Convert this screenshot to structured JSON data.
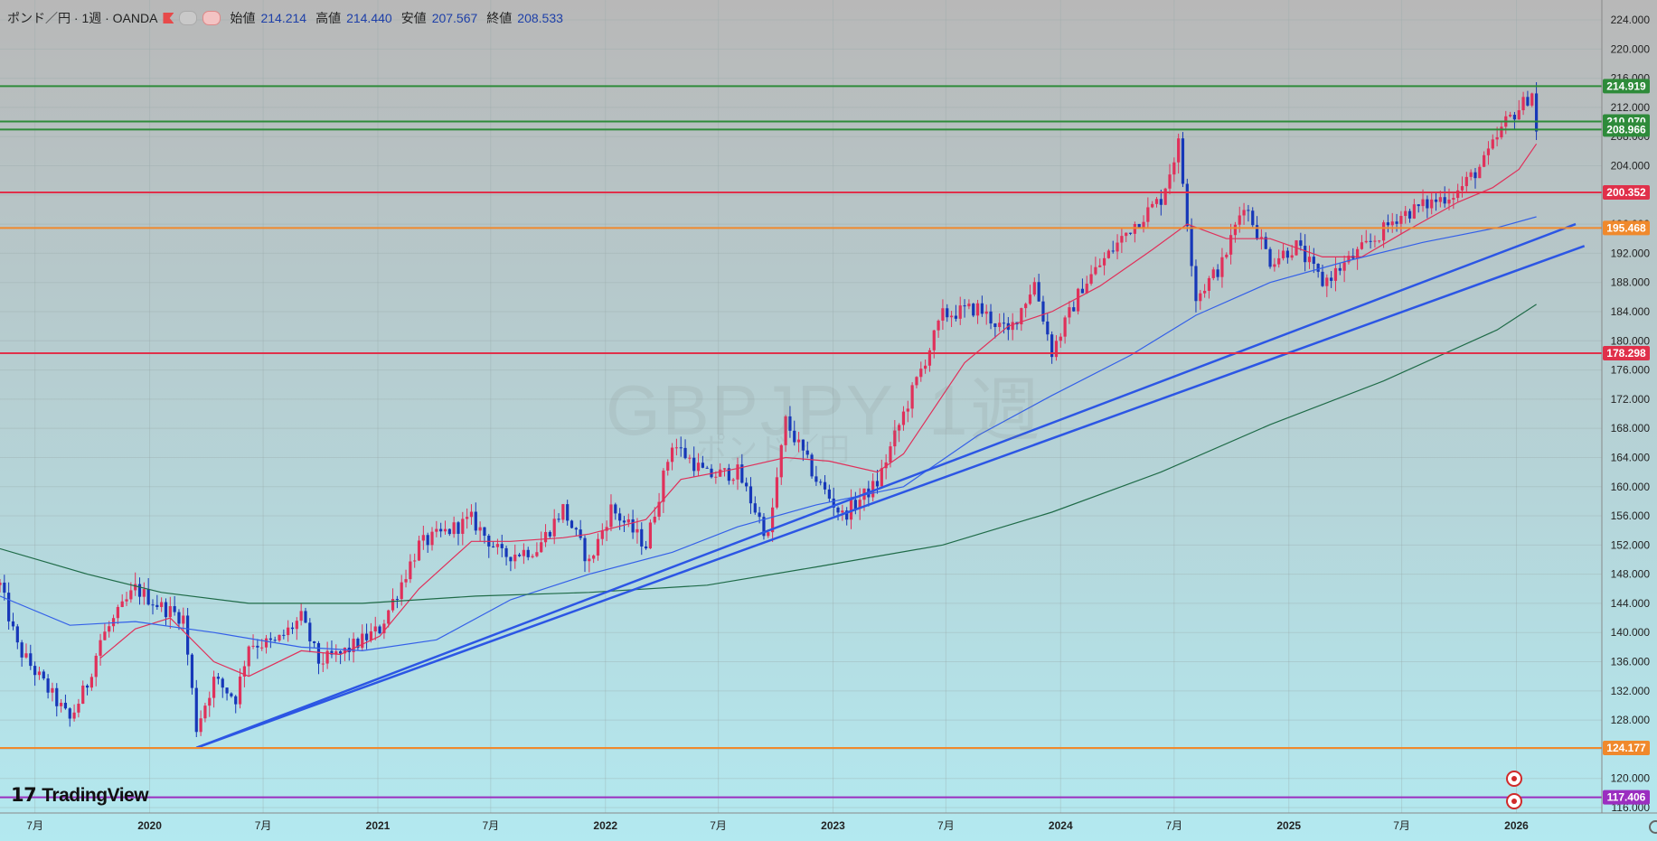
{
  "header": {
    "symbol": "ポンド／円 · 1週 · OANDA",
    "open_label": "始値",
    "open_value": "214.214",
    "high_label": "高値",
    "high_value": "214.440",
    "low_label": "安値",
    "low_value": "207.567",
    "close_label": "終値",
    "close_value": "208.533"
  },
  "watermark": {
    "main": "GBPJPY, 1週",
    "sub": "ポンド／円"
  },
  "logo": {
    "text": "TradingView"
  },
  "colors": {
    "bg_top": "#b6b6b6",
    "bg_bottom": "#b3e9f0",
    "bull": "#e0305a",
    "bear": "#1637b8",
    "ma_short": "#e0305a",
    "ma_mid": "#3460e8",
    "ma_long": "#1f6b48",
    "trend": "#2c56e4"
  },
  "chart_data": {
    "type": "candlestick",
    "interval": "weekly",
    "y_axis": {
      "range": [
        116.0,
        224.5
      ],
      "ticks": [
        "224.000",
        "220.000",
        "216.000",
        "212.000",
        "208.000",
        "204.000",
        "200.000",
        "196.000",
        "192.000",
        "188.000",
        "184.000",
        "180.000",
        "176.000",
        "172.000",
        "168.000",
        "164.000",
        "160.000",
        "156.000",
        "152.000",
        "148.000",
        "144.000",
        "140.000",
        "136.000",
        "132.000",
        "128.000",
        "124.000",
        "120.000",
        "116.000"
      ],
      "position": "right"
    },
    "x_axis": {
      "range": [
        "2019-05-06",
        "2026-05-18"
      ],
      "ticks": [
        {
          "date": "2019-07-01",
          "label": "7月"
        },
        {
          "date": "2020-01-01",
          "label": "2020"
        },
        {
          "date": "2020-07-01",
          "label": "7月"
        },
        {
          "date": "2021-01-01",
          "label": "2021"
        },
        {
          "date": "2021-07-01",
          "label": "7月"
        },
        {
          "date": "2022-01-01",
          "label": "2022"
        },
        {
          "date": "2022-07-01",
          "label": "7月"
        },
        {
          "date": "2023-01-01",
          "label": "2023"
        },
        {
          "date": "2023-07-01",
          "label": "7月"
        },
        {
          "date": "2024-01-01",
          "label": "2024"
        },
        {
          "date": "2024-07-01",
          "label": "7月"
        },
        {
          "date": "2025-01-01",
          "label": "2025"
        },
        {
          "date": "2025-07-01",
          "label": "7月"
        },
        {
          "date": "2026-01-01",
          "label": "2026"
        }
      ]
    },
    "price_path": [
      [
        "2019-05-06",
        146.5
      ],
      [
        "2019-06-03",
        138.0
      ],
      [
        "2019-08-26",
        128.0
      ],
      [
        "2019-09-23",
        133.0
      ],
      [
        "2019-10-14",
        139.0
      ],
      [
        "2019-12-09",
        146.0
      ],
      [
        "2020-01-20",
        143.5
      ],
      [
        "2020-02-24",
        142.0
      ],
      [
        "2020-03-16",
        127.0
      ],
      [
        "2020-04-13",
        133.5
      ],
      [
        "2020-05-18",
        131.0
      ],
      [
        "2020-06-08",
        138.5
      ],
      [
        "2020-07-20",
        138.5
      ],
      [
        "2020-08-31",
        142.0
      ],
      [
        "2020-09-28",
        136.0
      ],
      [
        "2020-11-02",
        137.0
      ],
      [
        "2021-01-04",
        140.5
      ],
      [
        "2021-03-08",
        152.0
      ],
      [
        "2021-05-31",
        155.5
      ],
      [
        "2021-07-19",
        150.5
      ],
      [
        "2021-09-13",
        151.5
      ],
      [
        "2021-10-25",
        157.0
      ],
      [
        "2021-12-06",
        149.5
      ],
      [
        "2022-01-10",
        157.0
      ],
      [
        "2022-03-07",
        152.0
      ],
      [
        "2022-04-18",
        166.0
      ],
      [
        "2022-06-13",
        161.5
      ],
      [
        "2022-08-01",
        162.0
      ],
      [
        "2022-09-19",
        153.0
      ],
      [
        "2022-10-17",
        169.0
      ],
      [
        "2022-12-05",
        161.0
      ],
      [
        "2023-01-16",
        156.0
      ],
      [
        "2023-03-13",
        160.5
      ],
      [
        "2023-04-24",
        170.0
      ],
      [
        "2023-06-26",
        183.5
      ],
      [
        "2023-08-21",
        184.5
      ],
      [
        "2023-10-09",
        181.0
      ],
      [
        "2023-11-20",
        188.0
      ],
      [
        "2023-12-18",
        178.5
      ],
      [
        "2024-02-05",
        187.5
      ],
      [
        "2024-04-22",
        195.5
      ],
      [
        "2024-06-10",
        199.5
      ],
      [
        "2024-07-08",
        207.0
      ],
      [
        "2024-08-05",
        186.0
      ],
      [
        "2024-09-16",
        190.5
      ],
      [
        "2024-10-21",
        199.0
      ],
      [
        "2024-12-02",
        191.0
      ],
      [
        "2025-01-13",
        193.0
      ],
      [
        "2025-02-24",
        188.0
      ],
      [
        "2025-04-07",
        191.0
      ],
      [
        "2025-05-19",
        194.0
      ],
      [
        "2025-06-23",
        197.0
      ],
      [
        "2025-08-04",
        198.5
      ],
      [
        "2025-09-29",
        200.5
      ],
      [
        "2025-11-10",
        204.5
      ],
      [
        "2025-12-15",
        210.0
      ],
      [
        "2026-01-12",
        212.5
      ],
      [
        "2026-01-26",
        214.2
      ],
      [
        "2026-02-02",
        208.5
      ]
    ],
    "moving_averages": [
      {
        "color": "#e0305a",
        "path": [
          [
            "2019-10-14",
            136.5
          ],
          [
            "2019-12-09",
            140.5
          ],
          [
            "2020-02-03",
            142.0
          ],
          [
            "2020-04-13",
            136.0
          ],
          [
            "2020-06-08",
            134.0
          ],
          [
            "2020-08-31",
            137.5
          ],
          [
            "2020-11-02",
            137.0
          ],
          [
            "2021-01-04",
            139.5
          ],
          [
            "2021-03-08",
            146.0
          ],
          [
            "2021-05-31",
            152.5
          ],
          [
            "2021-08-02",
            152.5
          ],
          [
            "2021-10-25",
            153.0
          ],
          [
            "2021-12-06",
            153.5
          ],
          [
            "2022-03-07",
            155.5
          ],
          [
            "2022-05-02",
            161.0
          ],
          [
            "2022-08-01",
            162.5
          ],
          [
            "2022-10-17",
            164.0
          ],
          [
            "2022-12-26",
            163.5
          ],
          [
            "2023-03-13",
            162.0
          ],
          [
            "2023-04-24",
            164.5
          ],
          [
            "2023-07-31",
            177.0
          ],
          [
            "2023-10-09",
            182.0
          ],
          [
            "2023-12-18",
            184.0
          ],
          [
            "2024-03-04",
            187.5
          ],
          [
            "2024-05-27",
            192.5
          ],
          [
            "2024-07-22",
            196.0
          ],
          [
            "2024-09-23",
            194.0
          ],
          [
            "2024-12-02",
            194.0
          ],
          [
            "2025-02-24",
            191.5
          ],
          [
            "2025-04-28",
            191.5
          ],
          [
            "2025-07-07",
            195.0
          ],
          [
            "2025-09-29",
            199.0
          ],
          [
            "2025-11-24",
            201.0
          ],
          [
            "2026-01-05",
            203.5
          ],
          [
            "2026-02-02",
            207.0
          ]
        ]
      },
      {
        "color": "#3460e8",
        "path": [
          [
            "2019-05-06",
            145.0
          ],
          [
            "2019-08-26",
            141.0
          ],
          [
            "2019-12-09",
            141.5
          ],
          [
            "2020-04-13",
            140.0
          ],
          [
            "2020-08-31",
            138.0
          ],
          [
            "2020-12-07",
            137.5
          ],
          [
            "2021-04-05",
            139.0
          ],
          [
            "2021-08-02",
            144.5
          ],
          [
            "2021-12-06",
            148.0
          ],
          [
            "2022-04-18",
            151.0
          ],
          [
            "2022-08-01",
            154.5
          ],
          [
            "2022-12-05",
            157.5
          ],
          [
            "2023-04-24",
            160.0
          ],
          [
            "2023-08-21",
            167.0
          ],
          [
            "2023-12-18",
            172.5
          ],
          [
            "2024-04-22",
            178.0
          ],
          [
            "2024-08-05",
            183.5
          ],
          [
            "2024-12-02",
            188.0
          ],
          [
            "2025-04-07",
            191.0
          ],
          [
            "2025-08-04",
            193.5
          ],
          [
            "2025-12-01",
            195.5
          ],
          [
            "2026-02-02",
            197.0
          ]
        ]
      },
      {
        "color": "#1f6b48",
        "path": [
          [
            "2019-05-06",
            151.5
          ],
          [
            "2019-09-23",
            148.0
          ],
          [
            "2020-01-20",
            145.5
          ],
          [
            "2020-06-08",
            144.0
          ],
          [
            "2020-12-07",
            144.0
          ],
          [
            "2021-06-07",
            145.0
          ],
          [
            "2021-12-06",
            145.5
          ],
          [
            "2022-06-13",
            146.5
          ],
          [
            "2022-12-05",
            149.0
          ],
          [
            "2023-06-26",
            152.0
          ],
          [
            "2023-12-18",
            156.5
          ],
          [
            "2024-06-10",
            162.0
          ],
          [
            "2024-12-02",
            168.5
          ],
          [
            "2025-06-02",
            174.5
          ],
          [
            "2025-12-01",
            181.5
          ],
          [
            "2026-02-02",
            185.0
          ]
        ]
      }
    ],
    "trend_lines": [
      {
        "from": [
          "2020-03-16",
          124.2
        ],
        "to": [
          "2026-04-06",
          196.0
        ]
      },
      {
        "from": [
          "2020-03-16",
          124.2
        ],
        "to": [
          "2026-04-20",
          193.0
        ]
      }
    ],
    "horizontal_levels": [
      {
        "value": 214.919,
        "label": "214.919",
        "color": "#2e8b3a"
      },
      {
        "value": 210.07,
        "label": "210.070",
        "color": "#2e8b3a"
      },
      {
        "value": 208.966,
        "label": "208.966",
        "color": "#2e8b3a"
      },
      {
        "value": 200.352,
        "label": "200.352",
        "color": "#e0304a"
      },
      {
        "value": 195.468,
        "label": "195.468",
        "color": "#f0892c"
      },
      {
        "value": 178.298,
        "label": "178.298",
        "color": "#e0304a"
      },
      {
        "value": 124.177,
        "label": "124.177",
        "color": "#f0892c"
      },
      {
        "value": 117.406,
        "label": "117.406",
        "color": "#9b2ec0"
      }
    ]
  }
}
